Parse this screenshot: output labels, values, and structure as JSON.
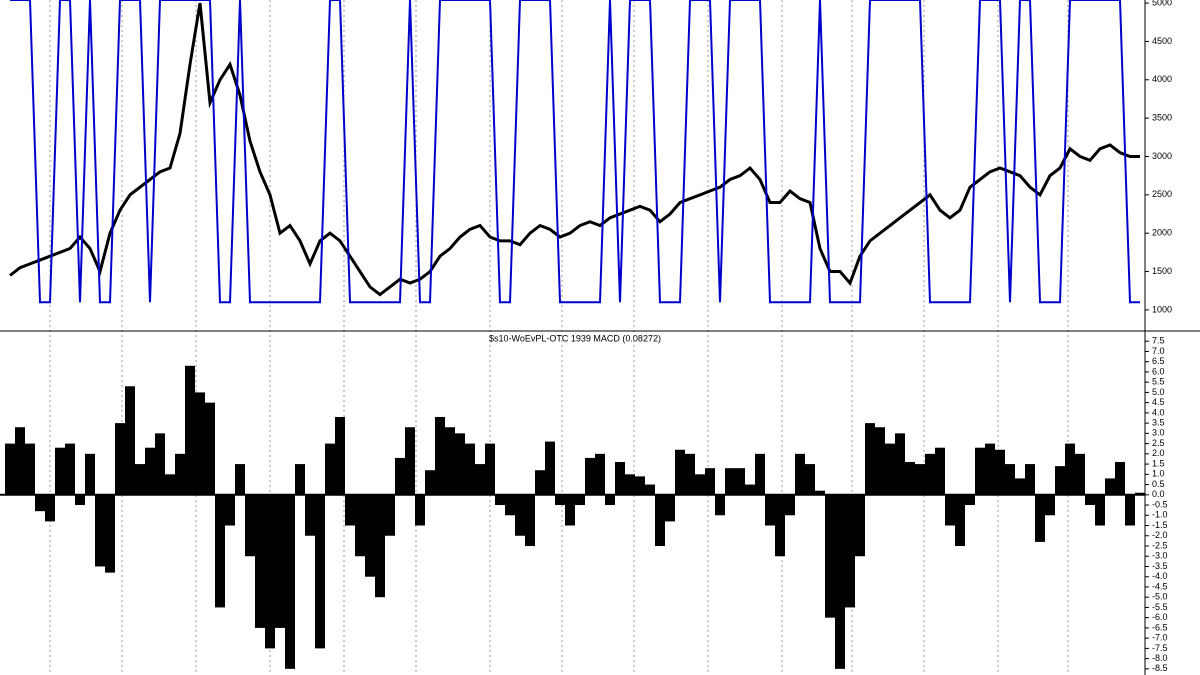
{
  "chart_data": [
    {
      "type": "line",
      "series": [
        {
          "name": "Price",
          "color": "#000000",
          "values": [
            1450,
            1550,
            1600,
            1650,
            1700,
            1750,
            1800,
            1950,
            1800,
            1500,
            2000,
            2300,
            2500,
            2600,
            2700,
            2800,
            2850,
            3300,
            4200,
            5000,
            3700,
            4000,
            4200,
            3800,
            3200,
            2800,
            2500,
            2000,
            2100,
            1900,
            1600,
            1900,
            2000,
            1900,
            1700,
            1500,
            1300,
            1200,
            1300,
            1400,
            1350,
            1400,
            1500,
            1700,
            1800,
            1950,
            2050,
            2100,
            1950,
            1900,
            1900,
            1850,
            2000,
            2100,
            2050,
            1950,
            2000,
            2100,
            2150,
            2100,
            2200,
            2250,
            2300,
            2350,
            2300,
            2150,
            2250,
            2400,
            2450,
            2500,
            2550,
            2600,
            2700,
            2750,
            2850,
            2700,
            2400,
            2400,
            2550,
            2450,
            2400,
            1800,
            1500,
            1500,
            1350,
            1700,
            1900,
            2000,
            2100,
            2200,
            2300,
            2400,
            2500,
            2300,
            2200,
            2300,
            2600,
            2700,
            2800,
            2850,
            2800,
            2750,
            2600,
            2500,
            2750,
            2850,
            3100,
            3000,
            2950,
            3100,
            3150,
            3050,
            3000,
            3000
          ]
        },
        {
          "name": "Signal",
          "color": "#0000cc",
          "values": [
            5040,
            5040,
            5040,
            1100,
            1100,
            5040,
            5040,
            1100,
            5040,
            1100,
            1100,
            5040,
            5040,
            5040,
            1100,
            5040,
            5040,
            5040,
            5040,
            5040,
            5040,
            1100,
            1100,
            5040,
            1100,
            1100,
            1100,
            1100,
            1100,
            1100,
            1100,
            1100,
            5040,
            5040,
            1100,
            1100,
            1100,
            1100,
            1100,
            1100,
            5040,
            1100,
            1100,
            5040,
            5040,
            5040,
            5040,
            5040,
            5040,
            1100,
            1100,
            5040,
            5040,
            5040,
            5040,
            1100,
            1100,
            1100,
            1100,
            1100,
            5040,
            1100,
            5040,
            5040,
            5040,
            1100,
            1100,
            1100,
            5040,
            5040,
            5040,
            1100,
            5040,
            5040,
            5040,
            5040,
            1100,
            1100,
            1100,
            1100,
            1100,
            5040,
            1100,
            1100,
            1100,
            1100,
            5040,
            5040,
            5040,
            5040,
            5040,
            5040,
            1100,
            1100,
            1100,
            1100,
            1100,
            5040,
            5040,
            5040,
            1100,
            5040,
            5040,
            1100,
            1100,
            1100,
            5040,
            5040,
            5040,
            5040,
            5040,
            5040,
            1100,
            1100
          ]
        }
      ],
      "ylim": [
        725,
        5040
      ],
      "yticks": [
        1000,
        1500,
        2000,
        2500,
        3000,
        3500,
        4000,
        4500,
        5000
      ]
    },
    {
      "type": "bar",
      "title": "$s10-WoEvPL-OTC 1939 MACD (0.08272)",
      "color": "#000000",
      "values": [
        2.5,
        3.3,
        2.5,
        -0.8,
        -1.3,
        2.3,
        2.5,
        -0.5,
        2.0,
        -3.5,
        -3.8,
        3.5,
        5.3,
        1.5,
        2.3,
        3.0,
        1.0,
        2.0,
        6.3,
        5.0,
        4.5,
        -5.5,
        -1.5,
        1.5,
        -3.0,
        -6.5,
        -7.5,
        -6.5,
        -8.5,
        1.5,
        -2.0,
        -7.5,
        2.5,
        3.8,
        -1.5,
        -3.0,
        -4.0,
        -5.0,
        -2.0,
        1.8,
        3.3,
        -1.5,
        1.2,
        3.8,
        3.3,
        3.0,
        2.5,
        1.5,
        2.5,
        -0.5,
        -1.0,
        -2.0,
        -2.5,
        1.2,
        2.6,
        -0.5,
        -1.5,
        -0.5,
        1.8,
        2.0,
        -0.5,
        1.6,
        1.0,
        0.9,
        0.5,
        -2.5,
        -1.3,
        2.2,
        2.0,
        1.0,
        1.3,
        -1.0,
        1.3,
        1.3,
        0.5,
        2.0,
        -1.5,
        -3.0,
        -1.0,
        2.0,
        1.5,
        0.2,
        -6.0,
        -8.5,
        -5.5,
        -3.0,
        3.5,
        3.3,
        2.5,
        3.0,
        1.6,
        1.5,
        2.0,
        2.3,
        -1.5,
        -2.5,
        -0.5,
        2.3,
        2.5,
        2.2,
        1.5,
        0.8,
        1.5,
        -2.3,
        -1.0,
        1.4,
        2.5,
        2.0,
        -0.5,
        -1.5,
        0.8,
        1.6,
        -1.5,
        0.1
      ],
      "ylim": [
        -8.8,
        7.95
      ],
      "yticks": [
        7.5,
        {
          "value": 7,
          "label": "7.0"
        },
        6.5,
        {
          "value": 6,
          "label": "6.0"
        },
        5.5,
        {
          "value": 5,
          "label": "5.0"
        },
        4.5,
        {
          "value": 4,
          "label": "4.0"
        },
        3.5,
        {
          "value": 3,
          "label": "3.0"
        },
        2.5,
        {
          "value": 2,
          "label": "2.0"
        },
        1.5,
        {
          "value": 1,
          "label": "1.0"
        },
        0.5,
        {
          "value": 0,
          "label": "0.0"
        },
        -0.5,
        {
          "value": -1,
          "label": "-1.0"
        },
        -1.5,
        {
          "value": -2,
          "label": "-2.0"
        },
        -2.5,
        {
          "value": -3,
          "label": "-3.0"
        },
        -3.5,
        {
          "value": -4,
          "label": "-4.0"
        },
        -4.5,
        {
          "value": -5,
          "label": "-5.0"
        },
        -5.5,
        {
          "value": -6,
          "label": "-6.0"
        },
        -6.5,
        {
          "value": -7,
          "label": "-7.0"
        },
        -7.5,
        {
          "value": -8,
          "label": "-8.0"
        },
        -8.5
      ]
    }
  ]
}
